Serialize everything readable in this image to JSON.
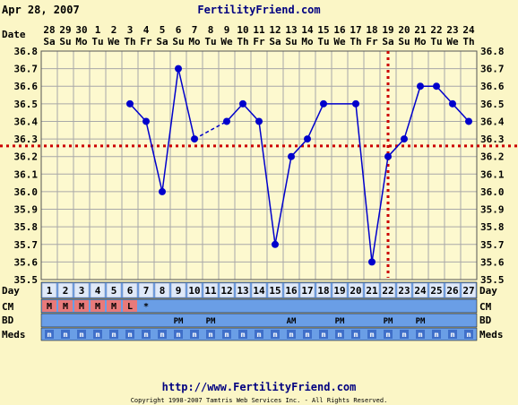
{
  "header": {
    "date": "Apr 28, 2007",
    "site": "FertilityFriend.com"
  },
  "footer": {
    "url": "http://www.FertilityFriend.com",
    "copyright": "Copyright 1998-2007 Tamtris Web Services Inc. - All Rights Reserved."
  },
  "row_labels": {
    "date": "Date",
    "day": "Day",
    "cm": "CM",
    "bd": "BD",
    "meds": "Meds"
  },
  "colors": {
    "background": "#fbf6c6",
    "plot_bg": "#fdf9cf",
    "grid": "#a8a8a8",
    "line": "#0000cc",
    "threshold": "#cc0000",
    "band": "#6a9ee6",
    "cm_cell": "#e87a7a"
  },
  "chart_data": {
    "type": "line",
    "title": "",
    "ylim": [
      35.5,
      36.8
    ],
    "y_ticks": [
      "35.5",
      "35.6",
      "35.7",
      "35.8",
      "35.9",
      "36.0",
      "36.1",
      "36.2",
      "36.3",
      "36.4",
      "36.5",
      "36.6",
      "36.7",
      "36.8"
    ],
    "dates": [
      "28",
      "29",
      "30",
      "1",
      "2",
      "3",
      "4",
      "5",
      "6",
      "7",
      "8",
      "9",
      "10",
      "11",
      "12",
      "13",
      "14",
      "15",
      "16",
      "17",
      "18",
      "19",
      "20",
      "21",
      "22",
      "23",
      "24"
    ],
    "weekdays": [
      "Sa",
      "Su",
      "Mo",
      "Tu",
      "We",
      "Th",
      "Fr",
      "Sa",
      "Su",
      "Mo",
      "Tu",
      "We",
      "Th",
      "Fr",
      "Sa",
      "Su",
      "Mo",
      "Tu",
      "We",
      "Th",
      "Fr",
      "Sa",
      "Su",
      "Mo",
      "Tu",
      "We",
      "Th"
    ],
    "cycle_days": [
      "1",
      "2",
      "3",
      "4",
      "5",
      "6",
      "7",
      "8",
      "9",
      "10",
      "11",
      "12",
      "13",
      "14",
      "15",
      "16",
      "17",
      "18",
      "19",
      "20",
      "21",
      "22",
      "23",
      "24",
      "25",
      "26",
      "27"
    ],
    "temps": [
      null,
      null,
      null,
      null,
      null,
      36.5,
      36.4,
      36.0,
      36.7,
      36.3,
      null,
      36.4,
      36.5,
      36.4,
      35.7,
      36.2,
      36.3,
      36.5,
      null,
      36.5,
      35.6,
      36.2,
      36.3,
      36.6,
      36.6,
      36.5,
      36.4
    ],
    "dashed_gap_after_index": 9,
    "coverline": 36.26,
    "ovulation_day": "22",
    "cm": [
      "M",
      "M",
      "M",
      "M",
      "M",
      "L",
      "*",
      "",
      "",
      "",
      "",
      "",
      "",
      "",
      "",
      "",
      "",
      "",
      "",
      "",
      "",
      "",
      "",
      "",
      "",
      "",
      ""
    ],
    "bd": [
      "",
      "",
      "",
      "",
      "",
      "",
      "",
      "",
      "PM",
      "",
      "PM",
      "",
      "",
      "",
      "",
      "AM",
      "",
      "",
      "PM",
      "",
      "",
      "PM",
      "",
      "PM",
      "",
      "",
      ""
    ],
    "meds": [
      "m",
      "m",
      "m",
      "m",
      "m",
      "m",
      "m",
      "m",
      "m",
      "m",
      "m",
      "m",
      "m",
      "m",
      "m",
      "m",
      "m",
      "m",
      "m",
      "m",
      "m",
      "m",
      "m",
      "m",
      "m",
      "m",
      "m"
    ]
  }
}
